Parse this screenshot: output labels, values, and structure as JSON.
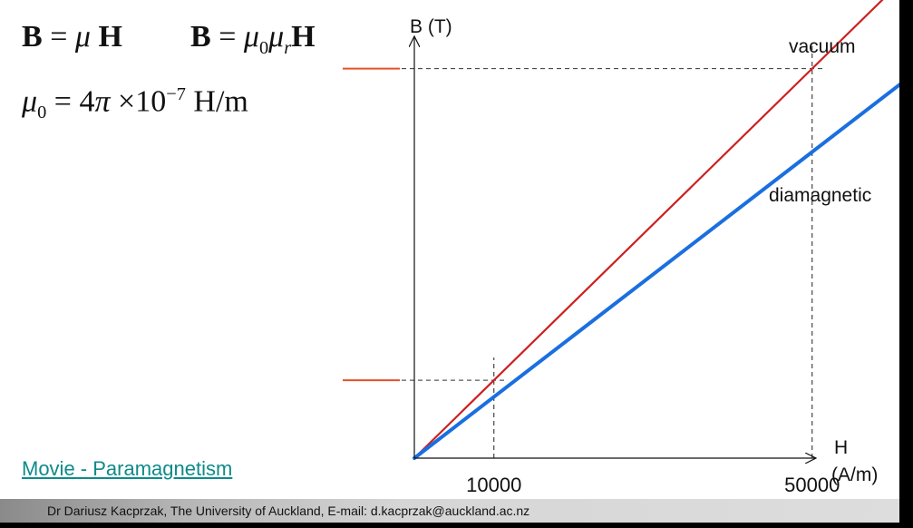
{
  "formulas": {
    "b_mu_h": {
      "lhs": "B",
      "eq": " = ",
      "mu": "μ",
      "h": " H"
    },
    "b_mu0_mur_h": {
      "lhs": "B",
      "eq": " = ",
      "mu": "μ",
      "sub0": "0",
      "sub_r": "r",
      "h": "H"
    },
    "mu0_def": {
      "mu": "μ",
      "sub0": "0",
      "eq": " = 4",
      "pi": "π",
      "times": " ×10",
      "exp": "−7",
      "unit": " H/m"
    }
  },
  "link": {
    "label": "Movie - Paramagnetism"
  },
  "footer": {
    "text": "Dr Dariusz Kacprzak, The University of Auckland, E-mail: d.kacprzak@auckland.ac.nz"
  },
  "chart_data": {
    "type": "line",
    "title": "",
    "ylabel": "B (T)",
    "xlabel_line1": "H",
    "xlabel_line2": "(A/m)",
    "x_ticks": [
      "10000",
      "50000"
    ],
    "x_tick_values": [
      10000,
      50000
    ],
    "xlim": [
      0,
      61000
    ],
    "y_scale_note": "B values unlabeled on axis",
    "series": [
      {
        "name": "vacuum",
        "color": "#cc2020",
        "relative_slope": 1.0,
        "x": [
          0,
          61000
        ]
      },
      {
        "name": "diamagnetic",
        "color": "#1a6fe0",
        "relative_slope": 0.786,
        "x": [
          0,
          68000
        ]
      }
    ],
    "guide_lines": {
      "style": "dashed",
      "at_x": [
        10000,
        50000
      ]
    },
    "markers": {
      "color": "#e8502a",
      "at_x": [
        10000,
        50000
      ],
      "series": "vacuum"
    },
    "grid": false,
    "legend": "inline labels"
  },
  "colors": {
    "vacuum": "#cc2020",
    "diamagnetic": "#1a6fe0",
    "marker": "#e8502a",
    "link": "#0e8a8a"
  }
}
